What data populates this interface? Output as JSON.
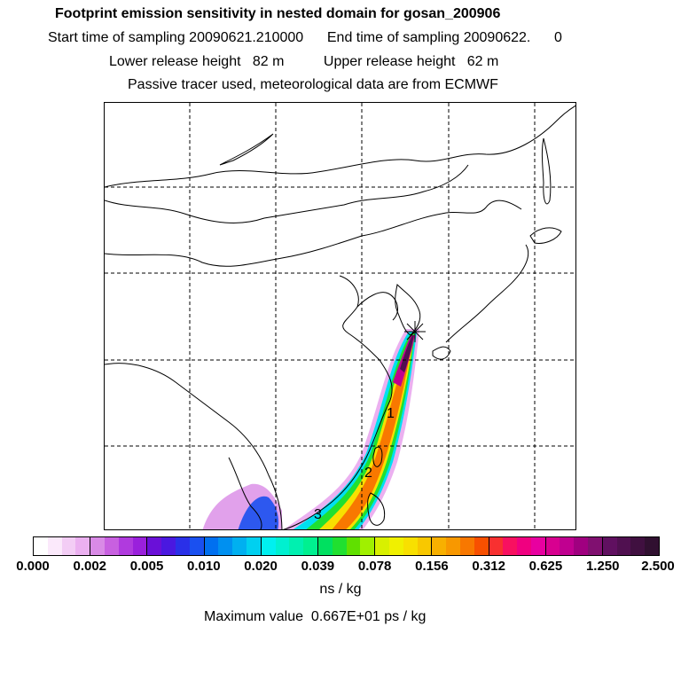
{
  "header": {
    "title": "Footprint emission sensitivity in nested domain for gosan_200906",
    "sampling_line": "Start time of sampling 20090621.210000      End time of sampling 20090622.      0",
    "release_line": "Lower release height   82 m          Upper release height   62 m",
    "tracer_line": "Passive tracer used, meteorological data are from ECMWF"
  },
  "map": {
    "receptor_marker": "receptor-star",
    "day_labels": [
      "1",
      "2",
      "3"
    ]
  },
  "colorbar": {
    "tick_labels": [
      "0.000",
      "0.002",
      "0.005",
      "0.010",
      "0.020",
      "0.039",
      "0.078",
      "0.156",
      "0.312",
      "0.625",
      "1.250",
      "2.500"
    ],
    "colors": [
      [
        "#ffffff",
        "#fbe9fb",
        "#f3cdf5",
        "#ebb0f0"
      ],
      [
        "#d98ae6",
        "#c860e0",
        "#b03ade",
        "#9a20dc"
      ],
      [
        "#6a10d8",
        "#4a18e0",
        "#2a30e8",
        "#1a50f0"
      ],
      [
        "#0070f0",
        "#0090f0",
        "#00b0f0",
        "#00d0f0"
      ],
      [
        "#00f0f0",
        "#00f0d0",
        "#00f0b0",
        "#00f090"
      ],
      [
        "#00e060",
        "#20e030",
        "#60e000",
        "#a0f000"
      ],
      [
        "#d8f000",
        "#f0f000",
        "#f8e000",
        "#f8c800"
      ],
      [
        "#f8b000",
        "#f89800",
        "#f87800",
        "#f85000"
      ],
      [
        "#f83030",
        "#f81060",
        "#f00080",
        "#e800a0"
      ],
      [
        "#d80090",
        "#c00090",
        "#a00080",
        "#801070"
      ],
      [
        "#601060",
        "#501050",
        "#401040",
        "#301030"
      ]
    ],
    "unit": "ns / kg"
  },
  "footer": {
    "max_value": "Maximum value  0.667E+01 ps / kg"
  }
}
